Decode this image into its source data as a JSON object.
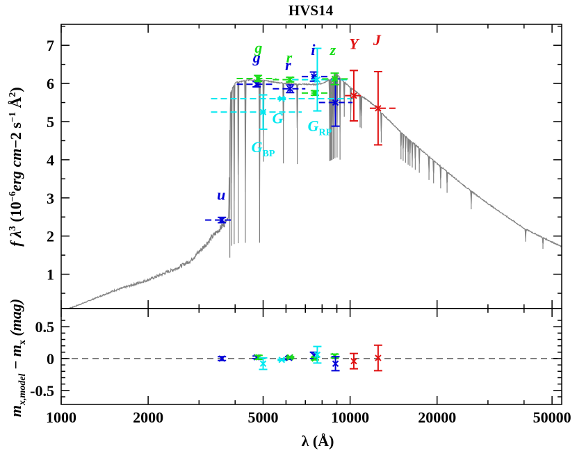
{
  "chart_data": {
    "type": "scatter",
    "title": "HVS14",
    "xlabel": "λ (Å)",
    "xscale": "log",
    "xlim": [
      1000,
      54000
    ],
    "xticks": [
      "1000",
      "2000",
      "5000",
      "10000",
      "20000",
      "50000"
    ],
    "xtick_values": [
      1000,
      2000,
      5000,
      10000,
      20000,
      50000
    ],
    "panels": [
      {
        "name": "sed",
        "ylabel_parts": [
          "f λ",
          "3",
          " (10",
          "−6",
          "erg cm",
          "−2",
          " s",
          "−1",
          " Å",
          "2",
          ")"
        ],
        "ylim": [
          0.1,
          7.55
        ],
        "yticks": [
          "1",
          "2",
          "3",
          "4",
          "5",
          "6",
          "7"
        ],
        "ytick_values": [
          1,
          2,
          3,
          4,
          5,
          6,
          7
        ],
        "model_spectrum": {
          "color": "#808080",
          "continuum": [
            [
              1000,
              0.02
            ],
            [
              1200,
              0.25
            ],
            [
              1500,
              0.55
            ],
            [
              2000,
              0.85
            ],
            [
              2500,
              1.15
            ],
            [
              2800,
              1.35
            ],
            [
              3100,
              1.7
            ],
            [
              3400,
              2.05
            ],
            [
              3650,
              2.3
            ],
            [
              3800,
              2.5
            ],
            [
              3850,
              5.75
            ],
            [
              4000,
              6.02
            ],
            [
              4500,
              6.1
            ],
            [
              5000,
              6.08
            ],
            [
              5500,
              6.03
            ],
            [
              6000,
              6.0
            ],
            [
              6500,
              5.98
            ],
            [
              7000,
              5.98
            ],
            [
              7500,
              5.97
            ],
            [
              8000,
              6.0
            ],
            [
              8500,
              6.1
            ],
            [
              8800,
              6.2
            ],
            [
              9000,
              6.25
            ],
            [
              9500,
              6.05
            ],
            [
              10000,
              5.9
            ],
            [
              12000,
              5.45
            ],
            [
              15000,
              4.72
            ],
            [
              20000,
              3.9
            ],
            [
              25000,
              3.3
            ],
            [
              30000,
              2.85
            ],
            [
              40000,
              2.2
            ],
            [
              54000,
              1.72
            ]
          ],
          "absorption_lines": [
            3835,
            3889,
            3970,
            4102,
            4340,
            4861,
            5016,
            5876,
            6563,
            8500,
            8545,
            8600,
            8665,
            8750,
            8863,
            9015,
            9229,
            9546,
            10050,
            10830,
            10940,
            12820,
            15000,
            15260,
            15560,
            15880,
            16110,
            16410,
            16810,
            17360,
            18750,
            19450,
            20580,
            21660,
            26250,
            40500,
            46500
          ]
        },
        "photometry": [
          {
            "band": "u",
            "wl": 3600,
            "val": 2.42,
            "err": 0.07,
            "xerr": [
              3150,
              3950
            ],
            "color": "#0000d8"
          },
          {
            "band": "g",
            "wl": 4750,
            "val": 5.98,
            "err": 0.07,
            "xerr": [
              4050,
              5500
            ],
            "color": "#0000d8"
          },
          {
            "band": "g",
            "wl": 4800,
            "val": 6.13,
            "err": 0.08,
            "xerr": [
              4050,
              5550
            ],
            "color": "#19dd19"
          },
          {
            "band": "G_BP",
            "wl": 5000,
            "val": 5.25,
            "err": 0.45,
            "xerr": [
              3300,
              6800
            ],
            "color": "#00e8f0"
          },
          {
            "band": "G",
            "wl": 5800,
            "val": 5.6,
            "err": 0.02,
            "xerr": [
              3300,
              10500
            ],
            "color": "#00e8f0"
          },
          {
            "band": "r",
            "wl": 6200,
            "val": 5.86,
            "err": 0.1,
            "xerr": [
              5400,
              7000
            ],
            "color": "#0000d8"
          },
          {
            "band": "r",
            "wl": 6200,
            "val": 6.1,
            "err": 0.06,
            "xerr": [
              5400,
              7050
            ],
            "color": "#19dd19"
          },
          {
            "band": "i",
            "wl": 7500,
            "val": 6.18,
            "err": 0.12,
            "xerr": [
              6800,
              8500
            ],
            "color": "#0000d8"
          },
          {
            "band": "i",
            "wl": 7550,
            "val": 5.75,
            "err": 0.06,
            "xerr": [
              6800,
              8600
            ],
            "color": "#19dd19"
          },
          {
            "band": "G_RP",
            "wl": 7700,
            "val": 6.1,
            "err": 0.82,
            "xerr": [
              6300,
              10000
            ],
            "color": "#00e8f0"
          },
          {
            "band": "z",
            "wl": 8900,
            "val": 5.5,
            "err": 0.62,
            "xerr": [
              7800,
              10200
            ],
            "color": "#0000d8"
          },
          {
            "band": "z",
            "wl": 8850,
            "val": 6.12,
            "err": 0.15,
            "xerr": [
              8000,
              9900
            ],
            "color": "#19dd19"
          },
          {
            "band": "Y",
            "wl": 10300,
            "val": 5.68,
            "err": 0.66,
            "xerr": [
              9600,
              11100
            ],
            "color": "#e01010"
          },
          {
            "band": "J",
            "wl": 12500,
            "val": 5.35,
            "err": 0.96,
            "xerr": [
              11700,
              14500
            ],
            "color": "#e01010"
          }
        ],
        "band_labels": [
          {
            "text": "u",
            "sub": "",
            "wl": 3580,
            "y": 2.95,
            "color": "#0000d8"
          },
          {
            "text": "g",
            "sub": "",
            "wl": 4750,
            "y": 6.55,
            "color": "#0000d8"
          },
          {
            "text": "g",
            "sub": "",
            "wl": 4820,
            "y": 6.8,
            "color": "#19dd19"
          },
          {
            "text": "G",
            "sub": "BP",
            "wl": 5000,
            "y": 4.2,
            "color": "#00e8f0"
          },
          {
            "text": "G",
            "sub": "",
            "wl": 5620,
            "y": 4.95,
            "color": "#00e8f0"
          },
          {
            "text": "r",
            "sub": "",
            "wl": 6100,
            "y": 6.35,
            "color": "#0000d8"
          },
          {
            "text": "r",
            "sub": "",
            "wl": 6150,
            "y": 6.55,
            "color": "#19dd19"
          },
          {
            "text": "G",
            "sub": "RP",
            "wl": 7850,
            "y": 4.75,
            "color": "#00e8f0"
          },
          {
            "text": "i",
            "sub": "",
            "wl": 7450,
            "y": 6.75,
            "color": "#0000d8"
          },
          {
            "text": "z",
            "sub": "",
            "wl": 8720,
            "y": 6.75,
            "color": "#19dd19"
          },
          {
            "text": "Y",
            "sub": "",
            "wl": 10300,
            "y": 6.9,
            "color": "#e01010"
          },
          {
            "text": "J",
            "sub": "",
            "wl": 12400,
            "y": 7.0,
            "color": "#e01010"
          }
        ]
      },
      {
        "name": "residuals",
        "ylabel_parts": [
          "m",
          "x,model",
          " − m",
          "x",
          " (mag)"
        ],
        "ylim": [
          -0.72,
          0.72
        ],
        "yticks": [
          "0.5",
          "0",
          "-0.5"
        ],
        "ytick_values": [
          0.5,
          0,
          -0.5
        ],
        "zero_line": {
          "style": "dashed",
          "color": "#808080"
        },
        "residuals": [
          {
            "wl": 3600,
            "val": 0.0,
            "err": 0.03,
            "color": "#0000d8"
          },
          {
            "wl": 4750,
            "val": 0.02,
            "err": 0.02,
            "color": "#0000d8"
          },
          {
            "wl": 4820,
            "val": 0.02,
            "err": 0.03,
            "color": "#19dd19"
          },
          {
            "wl": 5000,
            "val": -0.08,
            "err": 0.09,
            "color": "#00e8f0"
          },
          {
            "wl": 5800,
            "val": -0.02,
            "err": 0.01,
            "color": "#00e8f0"
          },
          {
            "wl": 6150,
            "val": 0.01,
            "err": 0.02,
            "color": "#0000d8"
          },
          {
            "wl": 6200,
            "val": 0.02,
            "err": 0.01,
            "color": "#19dd19"
          },
          {
            "wl": 7500,
            "val": 0.05,
            "err": 0.05,
            "color": "#0000d8"
          },
          {
            "wl": 7550,
            "val": 0.0,
            "err": 0.02,
            "color": "#19dd19"
          },
          {
            "wl": 7700,
            "val": 0.06,
            "err": 0.13,
            "color": "#00e8f0"
          },
          {
            "wl": 8850,
            "val": 0.04,
            "err": 0.03,
            "color": "#19dd19"
          },
          {
            "wl": 8900,
            "val": -0.08,
            "err": 0.11,
            "color": "#0000d8"
          },
          {
            "wl": 10300,
            "val": -0.04,
            "err": 0.12,
            "color": "#e01010"
          },
          {
            "wl": 12500,
            "val": 0.01,
            "err": 0.2,
            "color": "#e01010"
          }
        ]
      }
    ]
  }
}
